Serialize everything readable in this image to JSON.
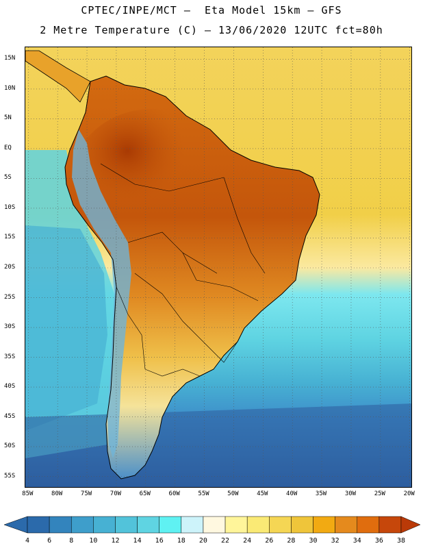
{
  "title_line1": "CPTEC/INPE/MCT –  Eta Model 15km – GFS",
  "title_line2": "2 Metre Temperature (C) – 13/06/2020 12UTC fct=80h",
  "map": {
    "lat_labels": [
      "15N",
      "10N",
      "5N",
      "EQ",
      "5S",
      "10S",
      "15S",
      "20S",
      "25S",
      "30S",
      "35S",
      "40S",
      "45S",
      "50S",
      "55S"
    ],
    "lat_values": [
      15,
      10,
      5,
      0,
      -5,
      -10,
      -15,
      -20,
      -25,
      -30,
      -35,
      -40,
      -45,
      -50,
      -55
    ],
    "lon_labels": [
      "85W",
      "80W",
      "75W",
      "70W",
      "65W",
      "60W",
      "55W",
      "50W",
      "45W",
      "40W",
      "35W",
      "30W",
      "25W",
      "20W"
    ],
    "lon_values": [
      -85,
      -80,
      -75,
      -70,
      -65,
      -60,
      -55,
      -50,
      -45,
      -40,
      -35,
      -30,
      -25,
      -20
    ],
    "lat_range": [
      -57,
      17
    ],
    "lon_range": [
      -85.5,
      -19.5
    ]
  },
  "colorbar": {
    "levels": [
      "4",
      "6",
      "8",
      "10",
      "12",
      "14",
      "16",
      "18",
      "20",
      "22",
      "24",
      "26",
      "28",
      "30",
      "32",
      "34",
      "36",
      "38"
    ],
    "colors": [
      "#2b6aab",
      "#3384bd",
      "#3e9ecb",
      "#47b1d3",
      "#52c3da",
      "#5fd4e2",
      "#5ff1f2",
      "#cdf3fa",
      "#fff8e0",
      "#fff59a",
      "#faea75",
      "#f5d654",
      "#efc53a",
      "#f2aa12",
      "#e58a1d",
      "#e06d0e",
      "#c6470b"
    ],
    "under_color": "#2b6aab",
    "over_color": "#ba3a08"
  },
  "legend_colors": {
    "ocean_cold": "#2d5d9e",
    "ocean_mid": "#3e9ecb",
    "ocean_warm": "#5fd4e2",
    "ocean_tropical": "#f0d24c",
    "land_hot": "#b94c06",
    "land_warm": "#e08a22",
    "andes_cold": "#6fb4d8"
  }
}
